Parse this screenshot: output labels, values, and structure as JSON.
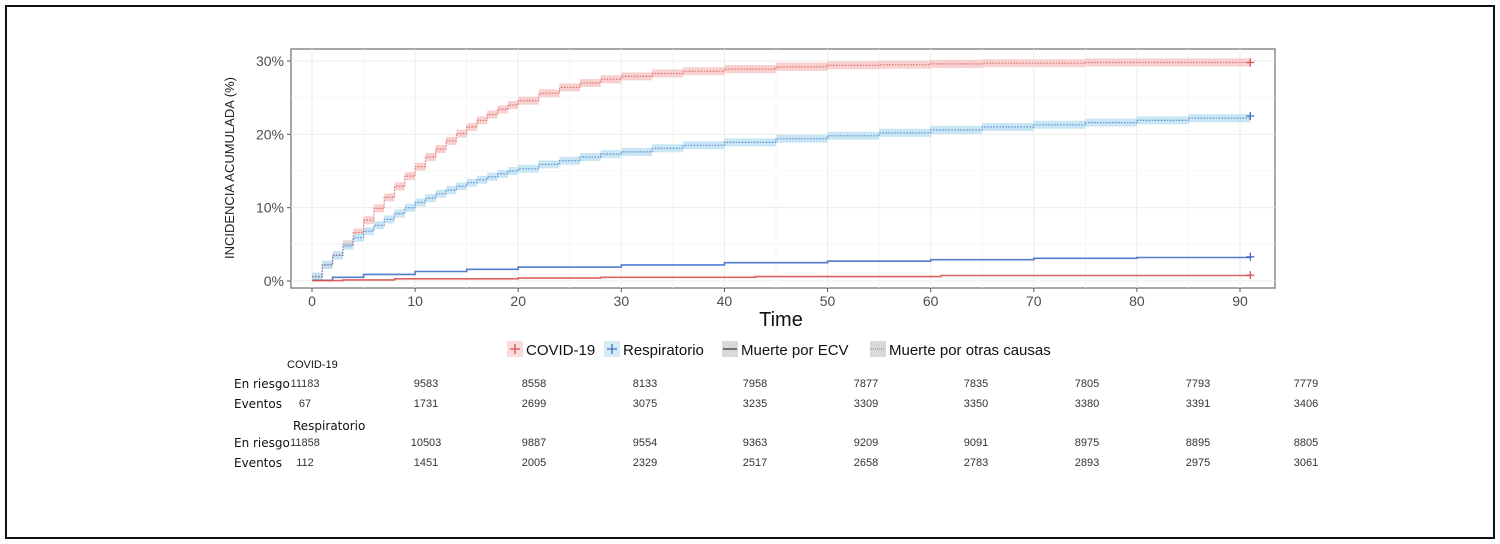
{
  "chart_data": {
    "type": "line",
    "title": "",
    "xlabel": "Time",
    "ylabel": "INCIDENCIA ACUMULADA (%)",
    "xlim": [
      -2,
      93
    ],
    "ylim": [
      -1,
      31.5
    ],
    "xticks": [
      0,
      10,
      20,
      30,
      40,
      50,
      60,
      70,
      80,
      90
    ],
    "xtick_labels": [
      "0",
      "10",
      "20",
      "30",
      "40",
      "50",
      "60",
      "70",
      "80",
      "90"
    ],
    "yticks": [
      0,
      10,
      20,
      30
    ],
    "ytick_labels": [
      "0%",
      "10%",
      "20%",
      "30%"
    ],
    "grid": true,
    "legend_position": "bottom",
    "legend": [
      {
        "label": "COVID-19",
        "kind": "group",
        "color": "#e06c6c"
      },
      {
        "label": "Respiratorio",
        "kind": "group",
        "color": "#4a90d9"
      },
      {
        "label": "Muerte por ECV",
        "kind": "linetype-solid"
      },
      {
        "label": "Muerte por otras causas",
        "kind": "linetype-dotted"
      }
    ],
    "colors": {
      "covid": "#d9534f",
      "covid_band": "#f7c8c8",
      "resp": "#3f6fc8",
      "resp_band": "#bfe2f2"
    },
    "series": [
      {
        "name": "COVID-19 · Muerte por otras causas",
        "group": "COVID-19",
        "linetype": "dotted",
        "color": "#d9534f",
        "x": [
          0,
          1,
          2,
          3,
          4,
          5,
          6,
          7,
          8,
          9,
          10,
          11,
          12,
          13,
          14,
          15,
          16,
          17,
          18,
          19,
          20,
          22,
          24,
          26,
          28,
          30,
          33,
          36,
          40,
          45,
          50,
          55,
          60,
          65,
          70,
          75,
          80,
          85,
          91
        ],
        "y": [
          0.6,
          2.2,
          3.5,
          5.0,
          6.6,
          8.3,
          9.9,
          11.4,
          12.9,
          14.3,
          15.6,
          16.9,
          18.0,
          19.1,
          20.1,
          21.0,
          21.9,
          22.7,
          23.4,
          24.0,
          24.6,
          25.6,
          26.4,
          27.0,
          27.5,
          27.9,
          28.3,
          28.6,
          28.9,
          29.2,
          29.4,
          29.5,
          29.6,
          29.7,
          29.7,
          29.8,
          29.8,
          29.8,
          29.8
        ]
      },
      {
        "name": "Respiratorio · Muerte por otras causas",
        "group": "Respiratorio",
        "linetype": "dotted",
        "color": "#3f6fc8",
        "x": [
          0,
          1,
          2,
          3,
          4,
          5,
          6,
          7,
          8,
          9,
          10,
          11,
          12,
          13,
          14,
          15,
          16,
          17,
          18,
          19,
          20,
          22,
          24,
          26,
          28,
          30,
          33,
          36,
          40,
          45,
          50,
          55,
          60,
          65,
          70,
          75,
          80,
          85,
          91
        ],
        "y": [
          0.6,
          2.2,
          3.5,
          4.8,
          5.9,
          6.8,
          7.6,
          8.4,
          9.2,
          10.0,
          10.7,
          11.3,
          11.9,
          12.4,
          12.9,
          13.4,
          13.8,
          14.2,
          14.6,
          15.0,
          15.3,
          15.9,
          16.4,
          16.9,
          17.3,
          17.6,
          18.1,
          18.5,
          18.9,
          19.4,
          19.8,
          20.2,
          20.6,
          21.0,
          21.3,
          21.6,
          21.9,
          22.2,
          22.5
        ]
      },
      {
        "name": "Respiratorio · Muerte por ECV",
        "group": "Respiratorio",
        "linetype": "solid",
        "color": "#3f6fc8",
        "x": [
          0,
          2,
          5,
          10,
          15,
          20,
          30,
          40,
          50,
          60,
          70,
          80,
          91
        ],
        "y": [
          0.1,
          0.5,
          0.9,
          1.3,
          1.6,
          1.9,
          2.2,
          2.5,
          2.7,
          2.9,
          3.1,
          3.2,
          3.3
        ]
      },
      {
        "name": "COVID-19 · Muerte por ECV",
        "group": "COVID-19",
        "linetype": "solid",
        "color": "#d9534f",
        "x": [
          0,
          3,
          8,
          20,
          28,
          43,
          61,
          91
        ],
        "y": [
          0.05,
          0.15,
          0.3,
          0.4,
          0.5,
          0.6,
          0.75,
          0.8
        ]
      }
    ]
  },
  "risk_table": {
    "groups": [
      {
        "name": "COVID-19",
        "rows": [
          {
            "label": "En riesgo",
            "values": [
              "11183",
              "9583",
              "8558",
              "8133",
              "7958",
              "7877",
              "7835",
              "7805",
              "7793",
              "7779"
            ]
          },
          {
            "label": "Eventos",
            "values": [
              "67",
              "1731",
              "2699",
              "3075",
              "3235",
              "3309",
              "3350",
              "3380",
              "3391",
              "3406"
            ]
          }
        ]
      },
      {
        "name": "Respiratorio",
        "rows": [
          {
            "label": "En riesgo",
            "values": [
              "11858",
              "10503",
              "9887",
              "9554",
              "9363",
              "9209",
              "9091",
              "8975",
              "8895",
              "8805"
            ]
          },
          {
            "label": "Eventos",
            "values": [
              "112",
              "1451",
              "2005",
              "2329",
              "2517",
              "2658",
              "2783",
              "2893",
              "2975",
              "3061"
            ]
          }
        ]
      }
    ]
  }
}
